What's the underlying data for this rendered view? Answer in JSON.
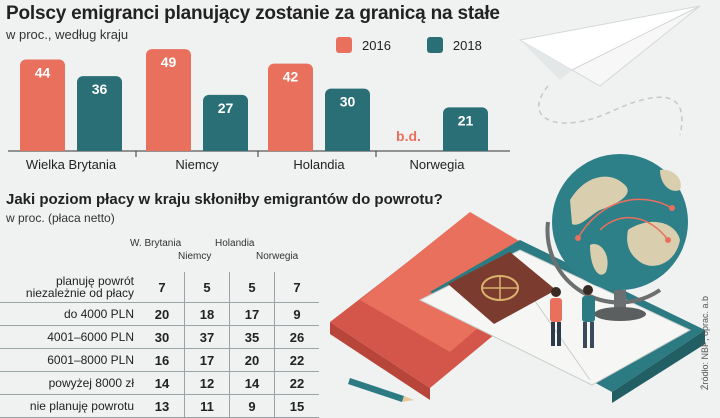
{
  "title": "Polscy emigranci planujący zostanie za granicą na stałe",
  "subtitle": "w proc., według kraju",
  "legend": {
    "a": "2016",
    "b": "2018"
  },
  "colors": {
    "a": "#e8705d",
    "b": "#296f75",
    "na_text": "#e8705d",
    "axis": "#333333"
  },
  "chart_data": {
    "type": "bar",
    "title": "Polscy emigranci planujący zostanie za granicą na stałe",
    "subtitle": "w proc., według kraju",
    "categories": [
      "Wielka Brytania",
      "Niemcy",
      "Holandia",
      "Norwegia"
    ],
    "series": [
      {
        "name": "2016",
        "values": [
          44,
          49,
          42,
          null
        ]
      },
      {
        "name": "2018",
        "values": [
          36,
          27,
          30,
          21
        ]
      }
    ],
    "missing_label": "b.d.",
    "ylim": [
      0,
      50
    ],
    "grid": false,
    "legend_position": "top-right"
  },
  "question": {
    "title": "Jaki poziom płacy w kraju  skłoniłby emigrantów do powrotu?",
    "subtitle": "w proc. (płaca netto)",
    "columns": [
      "W. Brytania",
      "Niemcy",
      "Holandia",
      "Norwegia"
    ],
    "rows": [
      {
        "label_lines": [
          "planuję powrót",
          "niezależnie od płacy"
        ],
        "values": [
          "7",
          "5",
          "5",
          "7"
        ]
      },
      {
        "label": "do 4000 PLN",
        "values": [
          "20",
          "18",
          "17",
          "9"
        ]
      },
      {
        "label": "4001–6000 PLN",
        "values": [
          "30",
          "37",
          "35",
          "26"
        ]
      },
      {
        "label": "6001–8000 PLN",
        "values": [
          "16",
          "17",
          "20",
          "22"
        ]
      },
      {
        "label": "powyżej 8000 zł",
        "values": [
          "14",
          "12",
          "14",
          "22"
        ]
      },
      {
        "label": "nie planuję powrotu",
        "values": [
          "13",
          "11",
          "9",
          "15"
        ]
      }
    ]
  },
  "source": "Źródło: NBP; oprac. a.b"
}
